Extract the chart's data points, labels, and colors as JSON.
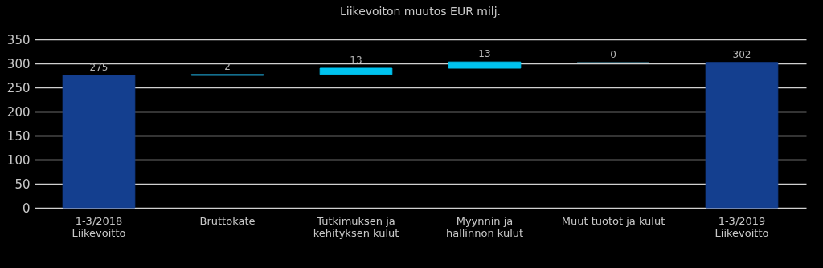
{
  "chart_data": {
    "type": "bar",
    "title": "Liikevoiton muutos EUR milj.",
    "categories": [
      "1-3/2018\nLiikevoitto",
      "Bruttokate",
      "Tutkimuksen ja\nkehityksen kulut",
      "Myynnin ja\nhallinnon kulut",
      "Muut tuotot ja kulut",
      "1-3/2019\nLiikevoitto"
    ],
    "values": [
      275,
      2,
      13,
      13,
      0,
      302
    ],
    "base": [
      0,
      275,
      277,
      290,
      302,
      0
    ],
    "colors": [
      "#143f8f",
      "#1a90b8",
      "#00c4f0",
      "#00c4f0",
      "#2d5a6a",
      "#143f8f"
    ],
    "ylim": [
      0,
      350
    ],
    "yticks": [
      0,
      50,
      100,
      150,
      200,
      250,
      300,
      350
    ],
    "grid": "y",
    "data_labels": true
  }
}
